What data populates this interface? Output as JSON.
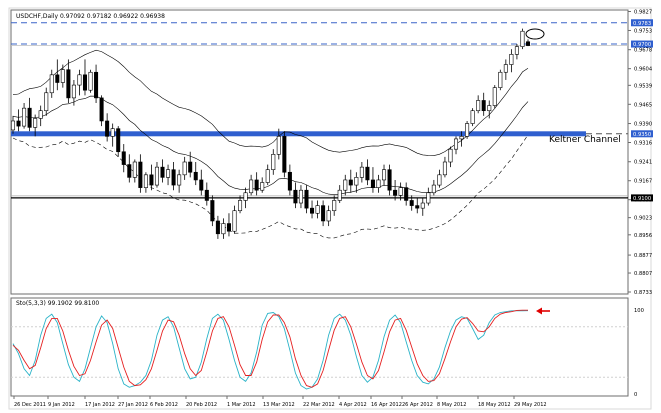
{
  "chart_data": [
    {
      "type": "candlestick",
      "header": "USDCHF,Daily  0.97092 0.97182 0.96922 0.96938",
      "ylim": [
        0.8733,
        0.9825
      ],
      "y_ticks": [
        "0.9827",
        "0.9753",
        "0.9678",
        "0.9604",
        "0.9539",
        "0.9465",
        "0.9390",
        "0.9316",
        "0.9241",
        "0.9167",
        "0.9093",
        "0.9023",
        "0.8956",
        "0.8877",
        "0.8807",
        "0.8733"
      ],
      "x_ticks": [
        "26 Dec 2011",
        "9 Jan 2012",
        "17 Jan 2012",
        "27 Jan 2012",
        "6 Feb 2012",
        "20 Feb 2012",
        "1 Mar 2012",
        "13 Mar 2012",
        "22 Mar 2012",
        "4 Apr 2012",
        "16 Apr 2012",
        "26 Apr 2012",
        "8 May 2012",
        "18 May 2012",
        "29 May 2012"
      ],
      "price_labels": [
        "0.9783",
        "0.9700",
        "0.9350",
        "0.9100"
      ],
      "horizontal_levels": [
        {
          "value": 0.9783,
          "style": "dashed",
          "color": "#3a64c8"
        },
        {
          "value": 0.97,
          "style": "dashed",
          "color": "#3a64c8"
        },
        {
          "value": 0.935,
          "style": "band",
          "color": "#2f5fcf"
        },
        {
          "value": 0.91,
          "style": "solid",
          "color": "#000000"
        }
      ],
      "annotation": "Keltner Channel",
      "candles": [
        {
          "o": 0.9365,
          "h": 0.942,
          "l": 0.935,
          "c": 0.94
        },
        {
          "o": 0.94,
          "h": 0.9445,
          "l": 0.936,
          "c": 0.938
        },
        {
          "o": 0.938,
          "h": 0.947,
          "l": 0.937,
          "c": 0.945
        },
        {
          "o": 0.945,
          "h": 0.949,
          "l": 0.936,
          "c": 0.9375
        },
        {
          "o": 0.9375,
          "h": 0.9425,
          "l": 0.934,
          "c": 0.941
        },
        {
          "o": 0.941,
          "h": 0.946,
          "l": 0.938,
          "c": 0.944
        },
        {
          "o": 0.944,
          "h": 0.953,
          "l": 0.942,
          "c": 0.951
        },
        {
          "o": 0.951,
          "h": 0.96,
          "l": 0.949,
          "c": 0.958
        },
        {
          "o": 0.958,
          "h": 0.964,
          "l": 0.952,
          "c": 0.955
        },
        {
          "o": 0.955,
          "h": 0.962,
          "l": 0.953,
          "c": 0.96
        },
        {
          "o": 0.96,
          "h": 0.964,
          "l": 0.947,
          "c": 0.949
        },
        {
          "o": 0.949,
          "h": 0.956,
          "l": 0.946,
          "c": 0.954
        },
        {
          "o": 0.954,
          "h": 0.96,
          "l": 0.95,
          "c": 0.958
        },
        {
          "o": 0.958,
          "h": 0.964,
          "l": 0.95,
          "c": 0.952
        },
        {
          "o": 0.952,
          "h": 0.96,
          "l": 0.951,
          "c": 0.959
        },
        {
          "o": 0.959,
          "h": 0.962,
          "l": 0.947,
          "c": 0.949
        },
        {
          "o": 0.949,
          "h": 0.95,
          "l": 0.938,
          "c": 0.94
        },
        {
          "o": 0.94,
          "h": 0.943,
          "l": 0.932,
          "c": 0.934
        },
        {
          "o": 0.934,
          "h": 0.939,
          "l": 0.93,
          "c": 0.937
        },
        {
          "o": 0.937,
          "h": 0.938,
          "l": 0.926,
          "c": 0.928
        },
        {
          "o": 0.928,
          "h": 0.931,
          "l": 0.92,
          "c": 0.923
        },
        {
          "o": 0.923,
          "h": 0.927,
          "l": 0.916,
          "c": 0.918
        },
        {
          "o": 0.918,
          "h": 0.925,
          "l": 0.916,
          "c": 0.924
        },
        {
          "o": 0.924,
          "h": 0.927,
          "l": 0.912,
          "c": 0.914
        },
        {
          "o": 0.914,
          "h": 0.92,
          "l": 0.912,
          "c": 0.919
        },
        {
          "o": 0.919,
          "h": 0.923,
          "l": 0.913,
          "c": 0.915
        },
        {
          "o": 0.915,
          "h": 0.924,
          "l": 0.914,
          "c": 0.922
        },
        {
          "o": 0.922,
          "h": 0.925,
          "l": 0.916,
          "c": 0.918
        },
        {
          "o": 0.918,
          "h": 0.923,
          "l": 0.915,
          "c": 0.921
        },
        {
          "o": 0.921,
          "h": 0.924,
          "l": 0.913,
          "c": 0.915
        },
        {
          "o": 0.915,
          "h": 0.921,
          "l": 0.912,
          "c": 0.919
        },
        {
          "o": 0.919,
          "h": 0.926,
          "l": 0.917,
          "c": 0.924
        },
        {
          "o": 0.924,
          "h": 0.928,
          "l": 0.918,
          "c": 0.92
        },
        {
          "o": 0.92,
          "h": 0.924,
          "l": 0.915,
          "c": 0.917
        },
        {
          "o": 0.917,
          "h": 0.921,
          "l": 0.911,
          "c": 0.913
        },
        {
          "o": 0.913,
          "h": 0.916,
          "l": 0.907,
          "c": 0.909
        },
        {
          "o": 0.909,
          "h": 0.911,
          "l": 0.899,
          "c": 0.901
        },
        {
          "o": 0.901,
          "h": 0.903,
          "l": 0.894,
          "c": 0.896
        },
        {
          "o": 0.896,
          "h": 0.902,
          "l": 0.894,
          "c": 0.9
        },
        {
          "o": 0.9,
          "h": 0.904,
          "l": 0.895,
          "c": 0.897
        },
        {
          "o": 0.897,
          "h": 0.907,
          "l": 0.896,
          "c": 0.905
        },
        {
          "o": 0.905,
          "h": 0.911,
          "l": 0.904,
          "c": 0.909
        },
        {
          "o": 0.909,
          "h": 0.914,
          "l": 0.906,
          "c": 0.912
        },
        {
          "o": 0.912,
          "h": 0.919,
          "l": 0.911,
          "c": 0.917
        },
        {
          "o": 0.917,
          "h": 0.92,
          "l": 0.911,
          "c": 0.913
        },
        {
          "o": 0.913,
          "h": 0.918,
          "l": 0.912,
          "c": 0.916
        },
        {
          "o": 0.916,
          "h": 0.923,
          "l": 0.915,
          "c": 0.921
        },
        {
          "o": 0.921,
          "h": 0.929,
          "l": 0.919,
          "c": 0.927
        },
        {
          "o": 0.927,
          "h": 0.937,
          "l": 0.925,
          "c": 0.934
        },
        {
          "o": 0.934,
          "h": 0.936,
          "l": 0.918,
          "c": 0.92
        },
        {
          "o": 0.92,
          "h": 0.923,
          "l": 0.911,
          "c": 0.913
        },
        {
          "o": 0.913,
          "h": 0.916,
          "l": 0.906,
          "c": 0.908
        },
        {
          "o": 0.908,
          "h": 0.915,
          "l": 0.906,
          "c": 0.913
        },
        {
          "o": 0.913,
          "h": 0.915,
          "l": 0.904,
          "c": 0.906
        },
        {
          "o": 0.906,
          "h": 0.909,
          "l": 0.902,
          "c": 0.904
        },
        {
          "o": 0.904,
          "h": 0.909,
          "l": 0.902,
          "c": 0.907
        },
        {
          "o": 0.907,
          "h": 0.909,
          "l": 0.899,
          "c": 0.901
        },
        {
          "o": 0.901,
          "h": 0.907,
          "l": 0.899,
          "c": 0.905
        },
        {
          "o": 0.905,
          "h": 0.911,
          "l": 0.903,
          "c": 0.909
        },
        {
          "o": 0.909,
          "h": 0.915,
          "l": 0.908,
          "c": 0.913
        },
        {
          "o": 0.913,
          "h": 0.919,
          "l": 0.911,
          "c": 0.917
        },
        {
          "o": 0.917,
          "h": 0.921,
          "l": 0.912,
          "c": 0.915
        },
        {
          "o": 0.915,
          "h": 0.92,
          "l": 0.912,
          "c": 0.918
        },
        {
          "o": 0.918,
          "h": 0.924,
          "l": 0.916,
          "c": 0.922
        },
        {
          "o": 0.922,
          "h": 0.925,
          "l": 0.915,
          "c": 0.917
        },
        {
          "o": 0.917,
          "h": 0.922,
          "l": 0.912,
          "c": 0.914
        },
        {
          "o": 0.914,
          "h": 0.919,
          "l": 0.912,
          "c": 0.917
        },
        {
          "o": 0.917,
          "h": 0.923,
          "l": 0.915,
          "c": 0.921
        },
        {
          "o": 0.921,
          "h": 0.923,
          "l": 0.911,
          "c": 0.913
        },
        {
          "o": 0.913,
          "h": 0.917,
          "l": 0.909,
          "c": 0.911
        },
        {
          "o": 0.911,
          "h": 0.916,
          "l": 0.909,
          "c": 0.914
        },
        {
          "o": 0.914,
          "h": 0.916,
          "l": 0.907,
          "c": 0.909
        },
        {
          "o": 0.909,
          "h": 0.911,
          "l": 0.905,
          "c": 0.907
        },
        {
          "o": 0.907,
          "h": 0.91,
          "l": 0.904,
          "c": 0.906
        },
        {
          "o": 0.906,
          "h": 0.91,
          "l": 0.903,
          "c": 0.908
        },
        {
          "o": 0.908,
          "h": 0.914,
          "l": 0.907,
          "c": 0.912
        },
        {
          "o": 0.912,
          "h": 0.917,
          "l": 0.911,
          "c": 0.915
        },
        {
          "o": 0.915,
          "h": 0.921,
          "l": 0.914,
          "c": 0.919
        },
        {
          "o": 0.919,
          "h": 0.926,
          "l": 0.918,
          "c": 0.924
        },
        {
          "o": 0.924,
          "h": 0.93,
          "l": 0.922,
          "c": 0.929
        },
        {
          "o": 0.929,
          "h": 0.934,
          "l": 0.927,
          "c": 0.933
        },
        {
          "o": 0.933,
          "h": 0.936,
          "l": 0.93,
          "c": 0.934
        },
        {
          "o": 0.934,
          "h": 0.94,
          "l": 0.933,
          "c": 0.939
        },
        {
          "o": 0.939,
          "h": 0.945,
          "l": 0.938,
          "c": 0.944
        },
        {
          "o": 0.944,
          "h": 0.95,
          "l": 0.943,
          "c": 0.948
        },
        {
          "o": 0.948,
          "h": 0.951,
          "l": 0.942,
          "c": 0.944
        },
        {
          "o": 0.944,
          "h": 0.948,
          "l": 0.941,
          "c": 0.946
        },
        {
          "o": 0.946,
          "h": 0.954,
          "l": 0.945,
          "c": 0.953
        },
        {
          "o": 0.953,
          "h": 0.96,
          "l": 0.952,
          "c": 0.959
        },
        {
          "o": 0.959,
          "h": 0.964,
          "l": 0.956,
          "c": 0.962
        },
        {
          "o": 0.962,
          "h": 0.968,
          "l": 0.959,
          "c": 0.966
        },
        {
          "o": 0.966,
          "h": 0.97,
          "l": 0.964,
          "c": 0.969
        },
        {
          "o": 0.969,
          "h": 0.976,
          "l": 0.968,
          "c": 0.975
        },
        {
          "o": 0.9709,
          "h": 0.9718,
          "l": 0.9692,
          "c": 0.9694
        }
      ],
      "keltner": {
        "upper_start": 0.95,
        "mid_start": 0.942,
        "lower_start": 0.934
      },
      "stochastic": {
        "header": "Sto(5,3,3) 99.1902 99.8100",
        "ylim": [
          0,
          100
        ],
        "y_ticks": [
          "100",
          "0"
        ],
        "series": [
          {
            "color": "#2ab3c8",
            "values": [
              60,
              48,
              30,
              22,
              40,
              70,
              90,
              95,
              85,
              60,
              35,
              20,
              15,
              30,
              55,
              80,
              93,
              85,
              60,
              30,
              12,
              8,
              10,
              14,
              22,
              40,
              70,
              88,
              92,
              80,
              55,
              30,
              18,
              20,
              38,
              66,
              90,
              95,
              88,
              65,
              40,
              20,
              15,
              25,
              50,
              82,
              96,
              97,
              92,
              78,
              52,
              25,
              10,
              6,
              8,
              18,
              40,
              70,
              90,
              95,
              88,
              70,
              45,
              22,
              14,
              20,
              40,
              68,
              88,
              94,
              85,
              62,
              40,
              22,
              14,
              12,
              18,
              32,
              55,
              75,
              88,
              92,
              90,
              78,
              65,
              70,
              85,
              94,
              97,
              98,
              99,
              99.2,
              99.1,
              99.19
            ]
          },
          {
            "color": "#e52020",
            "values": [
              58,
              52,
              40,
              30,
              34,
              55,
              78,
              90,
              90,
              75,
              52,
              33,
              22,
              24,
              40,
              62,
              82,
              88,
              78,
              55,
              32,
              15,
              10,
              11,
              17,
              30,
              52,
              75,
              88,
              86,
              70,
              48,
              30,
              22,
              28,
              50,
              75,
              90,
              92,
              80,
              58,
              35,
              22,
              22,
              38,
              65,
              86,
              94,
              94,
              85,
              68,
              42,
              22,
              10,
              8,
              12,
              28,
              52,
              76,
              90,
              92,
              80,
              60,
              38,
              22,
              18,
              28,
              50,
              74,
              88,
              90,
              76,
              56,
              36,
              22,
              15,
              16,
              24,
              42,
              62,
              80,
              89,
              91,
              84,
              75,
              74,
              80,
              90,
              95,
              97,
              98,
              99.5,
              99.8,
              99.81
            ]
          }
        ]
      }
    }
  ],
  "colors": {
    "grid": "#c8c8c8",
    "up_body": "#ffffff",
    "down_body": "#000000",
    "candle_outline": "#000000",
    "keltner_line": "#000000",
    "arrow": "#e00000",
    "ellipse": "#000000"
  }
}
